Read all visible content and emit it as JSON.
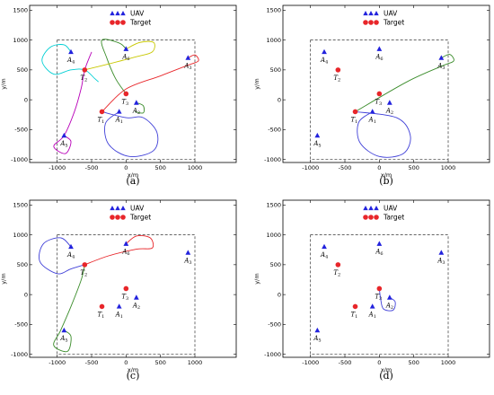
{
  "chart_data": [
    {
      "type": "scatter",
      "panel_label": "(a)",
      "xlabel": "x/m",
      "ylabel": "y/m",
      "xlim": [
        -1400,
        1600
      ],
      "ylim": [
        -1050,
        1580
      ],
      "xticks": [
        -1000,
        -500,
        0,
        500,
        1000
      ],
      "yticks": [
        -1000,
        -500,
        0,
        500,
        1000,
        1500
      ],
      "legend": {
        "position": "top",
        "uav_label": "UAV",
        "target_label": "Target"
      },
      "boundary": [
        -1000,
        -1000,
        1000,
        1000
      ],
      "uavs": [
        {
          "label": "A",
          "sub": "1",
          "x": -100,
          "y": -200
        },
        {
          "label": "A",
          "sub": "2",
          "x": 150,
          "y": -50
        },
        {
          "label": "A",
          "sub": "3",
          "x": 900,
          "y": 700
        },
        {
          "label": "A",
          "sub": "4",
          "x": -800,
          "y": 800
        },
        {
          "label": "A",
          "sub": "5",
          "x": -900,
          "y": -600
        },
        {
          "label": "A",
          "sub": "6",
          "x": 0,
          "y": 850
        }
      ],
      "targets": [
        {
          "label": "T",
          "sub": "1",
          "x": -350,
          "y": -200
        },
        {
          "label": "T",
          "sub": "2",
          "x": -600,
          "y": 500
        },
        {
          "label": "T",
          "sub": "3",
          "x": 0,
          "y": 100
        }
      ],
      "paths": [
        {
          "color": "#00cfd4",
          "points": [
            [
              -800,
              800
            ],
            [
              -900,
              920
            ],
            [
              -1100,
              880
            ],
            [
              -1220,
              650
            ],
            [
              -1050,
              430
            ],
            [
              -800,
              500
            ],
            [
              -600,
              500
            ],
            [
              -450,
              350
            ],
            [
              -400,
              300
            ]
          ]
        },
        {
          "color": "#b800b8",
          "points": [
            [
              -900,
              -600
            ],
            [
              -800,
              -700
            ],
            [
              -880,
              -900
            ],
            [
              -1050,
              -780
            ],
            [
              -900,
              -600
            ],
            [
              -750,
              -200
            ],
            [
              -650,
              200
            ],
            [
              -600,
              500
            ],
            [
              -500,
              800
            ]
          ]
        },
        {
          "color": "#3a8c2a",
          "points": [
            [
              0,
              850
            ],
            [
              -100,
              950
            ],
            [
              -350,
              1000
            ],
            [
              -280,
              700
            ],
            [
              -150,
              350
            ],
            [
              0,
              100
            ]
          ]
        },
        {
          "color": "#c8c800",
          "points": [
            [
              0,
              850
            ],
            [
              200,
              960
            ],
            [
              400,
              960
            ],
            [
              380,
              800
            ],
            [
              150,
              720
            ],
            [
              -250,
              600
            ],
            [
              -600,
              500
            ]
          ]
        },
        {
          "color": "#e8262a",
          "points": [
            [
              900,
              700
            ],
            [
              1000,
              750
            ],
            [
              1050,
              650
            ],
            [
              900,
              580
            ],
            [
              500,
              400
            ],
            [
              0,
              180
            ],
            [
              -350,
              -200
            ]
          ]
        },
        {
          "color": "#4040d8",
          "points": [
            [
              -100,
              -200
            ],
            [
              -300,
              -400
            ],
            [
              -250,
              -750
            ],
            [
              50,
              -950
            ],
            [
              400,
              -850
            ],
            [
              450,
              -550
            ],
            [
              250,
              -300
            ],
            [
              0,
              -300
            ],
            [
              -350,
              -200
            ]
          ]
        },
        {
          "color": "#3a8c2a",
          "points": [
            [
              150,
              -50
            ],
            [
              250,
              -100
            ],
            [
              250,
              -220
            ],
            [
              130,
              -200
            ]
          ]
        }
      ]
    },
    {
      "type": "scatter",
      "panel_label": "(b)",
      "xlabel": "x/m",
      "ylabel": "y/m",
      "xlim": [
        -1400,
        1600
      ],
      "ylim": [
        -1050,
        1580
      ],
      "xticks": [
        -1000,
        -500,
        0,
        500,
        1000
      ],
      "yticks": [
        -1000,
        -500,
        0,
        500,
        1000,
        1500
      ],
      "legend": {
        "position": "top",
        "uav_label": "UAV",
        "target_label": "Target"
      },
      "boundary": [
        -1000,
        -1000,
        1000,
        1000
      ],
      "uavs": [
        {
          "label": "A",
          "sub": "1",
          "x": -100,
          "y": -200
        },
        {
          "label": "A",
          "sub": "2",
          "x": 150,
          "y": -50
        },
        {
          "label": "A",
          "sub": "3",
          "x": 900,
          "y": 700
        },
        {
          "label": "A",
          "sub": "4",
          "x": -800,
          "y": 800
        },
        {
          "label": "A",
          "sub": "5",
          "x": -900,
          "y": -600
        },
        {
          "label": "A",
          "sub": "6",
          "x": 0,
          "y": 850
        }
      ],
      "targets": [
        {
          "label": "T",
          "sub": "1",
          "x": -350,
          "y": -200
        },
        {
          "label": "T",
          "sub": "2",
          "x": -600,
          "y": 500
        },
        {
          "label": "T",
          "sub": "3",
          "x": 0,
          "y": 100
        }
      ],
      "paths": [
        {
          "color": "#3a8c2a",
          "points": [
            [
              900,
              700
            ],
            [
              1020,
              760
            ],
            [
              1080,
              650
            ],
            [
              920,
              570
            ],
            [
              400,
              300
            ],
            [
              -350,
              -200
            ]
          ]
        },
        {
          "color": "#4040d8",
          "points": [
            [
              -100,
              -200
            ],
            [
              -300,
              -380
            ],
            [
              -280,
              -720
            ],
            [
              0,
              -950
            ],
            [
              350,
              -900
            ],
            [
              450,
              -600
            ],
            [
              250,
              -300
            ],
            [
              -350,
              -200
            ]
          ]
        }
      ]
    },
    {
      "type": "scatter",
      "panel_label": "(c)",
      "xlabel": "x/m",
      "ylabel": "y/m",
      "xlim": [
        -1400,
        1600
      ],
      "ylim": [
        -1050,
        1580
      ],
      "xticks": [
        -1000,
        -500,
        0,
        500,
        1000
      ],
      "yticks": [
        -1000,
        -500,
        0,
        500,
        1000,
        1500
      ],
      "legend": {
        "position": "top",
        "uav_label": "UAV",
        "target_label": "Target"
      },
      "boundary": [
        -1000,
        -1000,
        1000,
        1000
      ],
      "uavs": [
        {
          "label": "A",
          "sub": "1",
          "x": -100,
          "y": -200
        },
        {
          "label": "A",
          "sub": "2",
          "x": 150,
          "y": -50
        },
        {
          "label": "A",
          "sub": "3",
          "x": 900,
          "y": 700
        },
        {
          "label": "A",
          "sub": "4",
          "x": -800,
          "y": 800
        },
        {
          "label": "A",
          "sub": "5",
          "x": -900,
          "y": -600
        },
        {
          "label": "A",
          "sub": "6",
          "x": 0,
          "y": 850
        }
      ],
      "targets": [
        {
          "label": "T",
          "sub": "1",
          "x": -350,
          "y": -200
        },
        {
          "label": "T",
          "sub": "2",
          "x": -600,
          "y": 500
        },
        {
          "label": "T",
          "sub": "3",
          "x": 0,
          "y": 100
        }
      ],
      "paths": [
        {
          "color": "#4040d8",
          "points": [
            [
              -800,
              800
            ],
            [
              -950,
              950
            ],
            [
              -1200,
              850
            ],
            [
              -1250,
              550
            ],
            [
              -1000,
              350
            ],
            [
              -800,
              430
            ],
            [
              -600,
              500
            ]
          ]
        },
        {
          "color": "#3a8c2a",
          "points": [
            [
              -900,
              -600
            ],
            [
              -800,
              -700
            ],
            [
              -850,
              -950
            ],
            [
              -1050,
              -850
            ],
            [
              -950,
              -600
            ],
            [
              -800,
              -200
            ],
            [
              -650,
              250
            ],
            [
              -600,
              500
            ]
          ]
        },
        {
          "color": "#e8262a",
          "points": [
            [
              0,
              850
            ],
            [
              150,
              980
            ],
            [
              350,
              950
            ],
            [
              380,
              780
            ],
            [
              150,
              760
            ],
            [
              -250,
              650
            ],
            [
              -600,
              500
            ]
          ]
        }
      ]
    },
    {
      "type": "scatter",
      "panel_label": "(d)",
      "xlabel": "x/m",
      "ylabel": "y/m",
      "xlim": [
        -1400,
        1600
      ],
      "ylim": [
        -1050,
        1580
      ],
      "xticks": [
        -1000,
        -500,
        0,
        500,
        1000
      ],
      "yticks": [
        -1000,
        -500,
        0,
        500,
        1000,
        1500
      ],
      "legend": {
        "position": "top",
        "uav_label": "UAV",
        "target_label": "Target"
      },
      "boundary": [
        -1000,
        -1000,
        1000,
        1000
      ],
      "uavs": [
        {
          "label": "A",
          "sub": "1",
          "x": -100,
          "y": -200
        },
        {
          "label": "A",
          "sub": "2",
          "x": 150,
          "y": -50
        },
        {
          "label": "A",
          "sub": "3",
          "x": 900,
          "y": 700
        },
        {
          "label": "A",
          "sub": "4",
          "x": -800,
          "y": 800
        },
        {
          "label": "A",
          "sub": "5",
          "x": -900,
          "y": -600
        },
        {
          "label": "A",
          "sub": "6",
          "x": 0,
          "y": 850
        }
      ],
      "targets": [
        {
          "label": "T",
          "sub": "1",
          "x": -350,
          "y": -200
        },
        {
          "label": "T",
          "sub": "2",
          "x": -600,
          "y": 500
        },
        {
          "label": "T",
          "sub": "3",
          "x": 0,
          "y": 100
        }
      ],
      "paths": [
        {
          "color": "#4040d8",
          "points": [
            [
              150,
              -50
            ],
            [
              230,
              -120
            ],
            [
              200,
              -260
            ],
            [
              60,
              -240
            ],
            [
              20,
              -80
            ],
            [
              0,
              100
            ]
          ]
        }
      ]
    }
  ],
  "colors": {
    "uav": "#2222dd",
    "target": "#e8262a",
    "boundary": "#333333"
  }
}
